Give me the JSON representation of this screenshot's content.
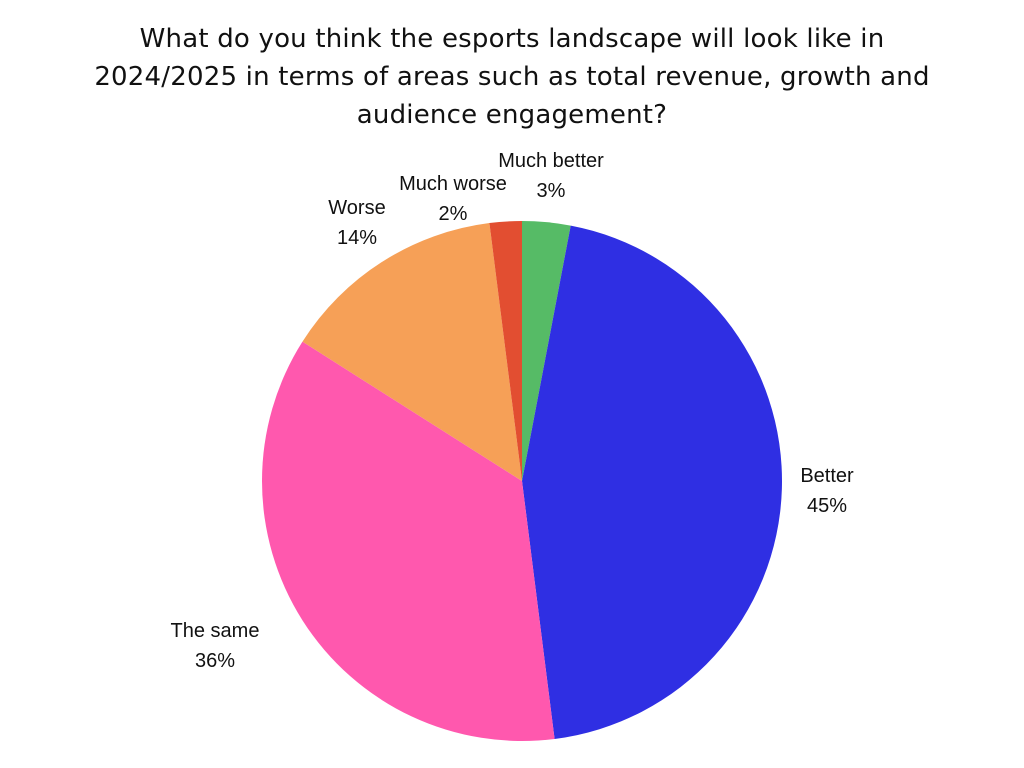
{
  "chart_data": {
    "type": "pie",
    "title_lines": [
      "What do you think the esports landscape will look like in",
      "2024/2025 in terms of areas such as total revenue, growth and",
      "audience engagement?"
    ],
    "categories": [
      "Much better",
      "Better",
      "The same",
      "Worse",
      "Much worse"
    ],
    "values": [
      3,
      45,
      36,
      14,
      2
    ],
    "value_labels": [
      "3%",
      "45%",
      "36%",
      "14%",
      "2%"
    ],
    "colors": [
      "#56BB66",
      "#2F2FE3",
      "#FF58AE",
      "#F6A057",
      "#E24E31"
    ],
    "start": "top",
    "direction": "clockwise",
    "legend": "none"
  }
}
